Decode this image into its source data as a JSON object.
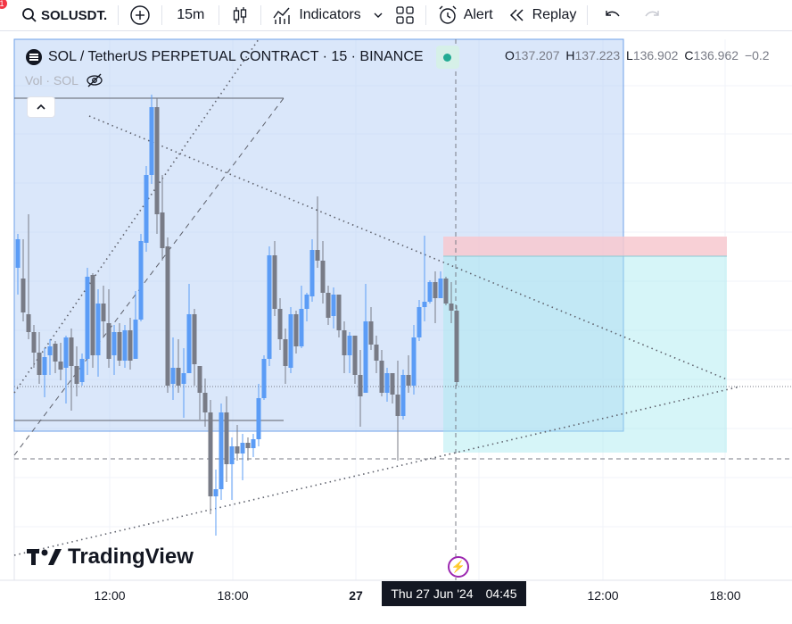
{
  "toolbar": {
    "notification_count": "1",
    "symbol": "SOLUSDT.",
    "interval": "15m",
    "indicators_label": "Indicators",
    "alert_label": "Alert",
    "replay_label": "Replay"
  },
  "legend": {
    "title": "SOL / TetherUS PERPETUAL CONTRACT · 15 · BINANCE",
    "open_key": "O",
    "open": "137.207",
    "high_key": "H",
    "high": "137.223",
    "low_key": "L",
    "low": "136.902",
    "close_key": "C",
    "close": "136.962",
    "change": "−0.2",
    "vol_label": "Vol · SOL"
  },
  "branding": {
    "logo_text": "TradingView"
  },
  "time_axis": {
    "ticks": [
      "12:00",
      "18:00",
      "27",
      "12:00",
      "18:00"
    ],
    "cursor_date": "Thu 27 Jun '24",
    "cursor_time": "04:45"
  },
  "colors": {
    "up": "#5b9cf6",
    "down": "#787b86",
    "range_fill": "#bbd3f5",
    "profit_fill": "#a5e8ef",
    "loss_fill": "#f7c8cf"
  }
}
